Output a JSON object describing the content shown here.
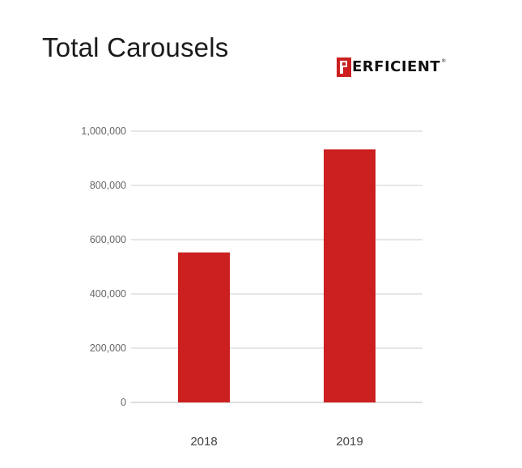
{
  "chart_data": {
    "type": "bar",
    "title": "Total Carousels",
    "categories": [
      "2018",
      "2019"
    ],
    "values": [
      553000,
      933000
    ],
    "ylim": [
      0,
      1000000
    ],
    "yticks": [
      0,
      200000,
      400000,
      600000,
      800000,
      1000000
    ],
    "ytick_labels": [
      "0",
      "200,000",
      "400,000",
      "600,000",
      "800,000",
      "1,000,000"
    ],
    "grid": true,
    "xlabel": "",
    "ylabel": "",
    "bar_color": "#cc1f1f",
    "gridline_color": "#cccccc"
  },
  "logo": {
    "initial": "P",
    "text": "ERFICIENT",
    "trademark": "®",
    "accent_color": "#cc1f1f"
  }
}
